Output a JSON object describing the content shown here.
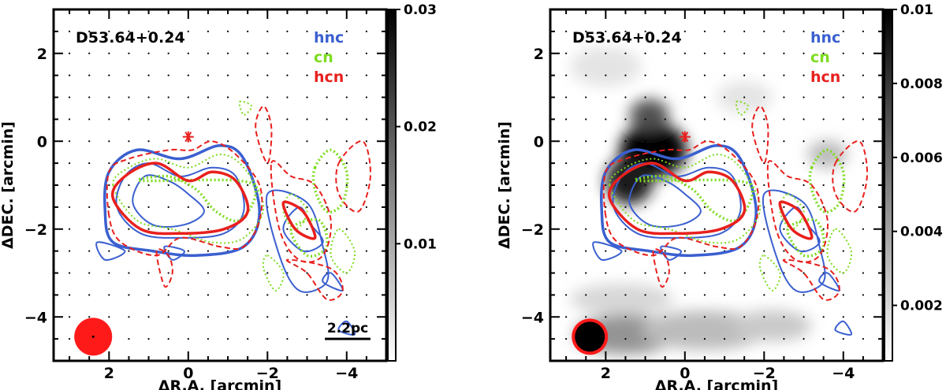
{
  "chart_data": [
    {
      "type": "heatmap",
      "source_label": "D53.64+0.24",
      "xlabel": "ΔR.A. [arcmin]",
      "ylabel": "ΔDEC. [arcmin]",
      "xlim": [
        3.4,
        -5.0
      ],
      "ylim": [
        -5.0,
        3.0
      ],
      "x_ticks": [
        {
          "v": 2,
          "label": "2"
        },
        {
          "v": 0,
          "label": "0"
        },
        {
          "v": -2,
          "label": "−2"
        },
        {
          "v": -4,
          "label": "−4"
        }
      ],
      "y_ticks": [
        {
          "v": 2,
          "label": "2"
        },
        {
          "v": 0,
          "label": "0"
        },
        {
          "v": -2,
          "label": "−2"
        },
        {
          "v": -4,
          "label": "−4"
        }
      ],
      "colorbar": {
        "range": [
          0.0,
          0.03
        ],
        "ticks": [
          {
            "v": 0.03,
            "label": "0.03"
          },
          {
            "v": 0.02,
            "label": "0.02"
          },
          {
            "v": 0.01,
            "label": "0.01"
          }
        ]
      },
      "legend": [
        {
          "name": "hnc",
          "color": "#3a5fd0"
        },
        {
          "name": "cn",
          "color": "#7ddc1f"
        },
        {
          "name": "hcn",
          "color": "#e8201d"
        }
      ],
      "scale_bar": "2.2pc",
      "beam": {
        "fill": "#ff1a1a"
      },
      "peak_marker": [
        0.0,
        0.1
      ],
      "grayscale": []
    },
    {
      "type": "heatmap",
      "source_label": "D53.64+0.24",
      "xlabel": "ΔR.A. [arcmin]",
      "ylabel": "ΔDEC. [arcmin]",
      "xlim": [
        3.4,
        -5.0
      ],
      "ylim": [
        -5.0,
        3.0
      ],
      "x_ticks": [
        {
          "v": 2,
          "label": "2"
        },
        {
          "v": 0,
          "label": "0"
        },
        {
          "v": -2,
          "label": "−2"
        },
        {
          "v": -4,
          "label": "−4"
        }
      ],
      "y_ticks": [
        {
          "v": 2,
          "label": "2"
        },
        {
          "v": 0,
          "label": "0"
        },
        {
          "v": -2,
          "label": "−2"
        },
        {
          "v": -4,
          "label": "−4"
        }
      ],
      "colorbar": {
        "range": [
          0.0005,
          0.01
        ],
        "ticks": [
          {
            "v": 0.01,
            "label": "0.01"
          },
          {
            "v": 0.008,
            "label": "0.008"
          },
          {
            "v": 0.006,
            "label": "0.006"
          },
          {
            "v": 0.004,
            "label": "0.004"
          },
          {
            "v": 0.002,
            "label": "0.002"
          }
        ]
      },
      "legend": [
        {
          "name": "hnc",
          "color": "#3a5fd0"
        },
        {
          "name": "cn",
          "color": "#7ddc1f"
        },
        {
          "name": "hcn",
          "color": "#e8201d"
        }
      ],
      "beam": {
        "fill": "#000000",
        "edge": "#ff1a1a"
      },
      "peak_marker": [
        0.0,
        0.1
      ],
      "grayscale_blobs": [
        {
          "x": 0.8,
          "y": -0.2,
          "rx": 0.85,
          "ry": 0.7,
          "value": 0.01
        },
        {
          "x": 1.4,
          "y": -0.9,
          "rx": 0.6,
          "ry": 0.6,
          "value": 0.009
        },
        {
          "x": 0.9,
          "y": 0.6,
          "rx": 0.5,
          "ry": 0.4,
          "value": 0.007
        },
        {
          "x": 2.0,
          "y": 1.7,
          "rx": 0.9,
          "ry": 0.5,
          "value": 0.0015
        },
        {
          "x": -1.5,
          "y": 1.0,
          "rx": 0.7,
          "ry": 0.4,
          "value": 0.0015
        },
        {
          "x": -3.6,
          "y": -0.3,
          "rx": 0.5,
          "ry": 0.35,
          "value": 0.003
        },
        {
          "x": 1.5,
          "y": -4.4,
          "rx": 1.3,
          "ry": 0.5,
          "value": 0.0045
        },
        {
          "x": -0.5,
          "y": -4.3,
          "rx": 1.6,
          "ry": 0.5,
          "value": 0.003
        },
        {
          "x": -2.2,
          "y": -4.2,
          "rx": 1.0,
          "ry": 0.4,
          "value": 0.0025
        },
        {
          "x": 1.6,
          "y": -3.6,
          "rx": 1.3,
          "ry": 0.4,
          "value": 0.002
        }
      ]
    }
  ]
}
